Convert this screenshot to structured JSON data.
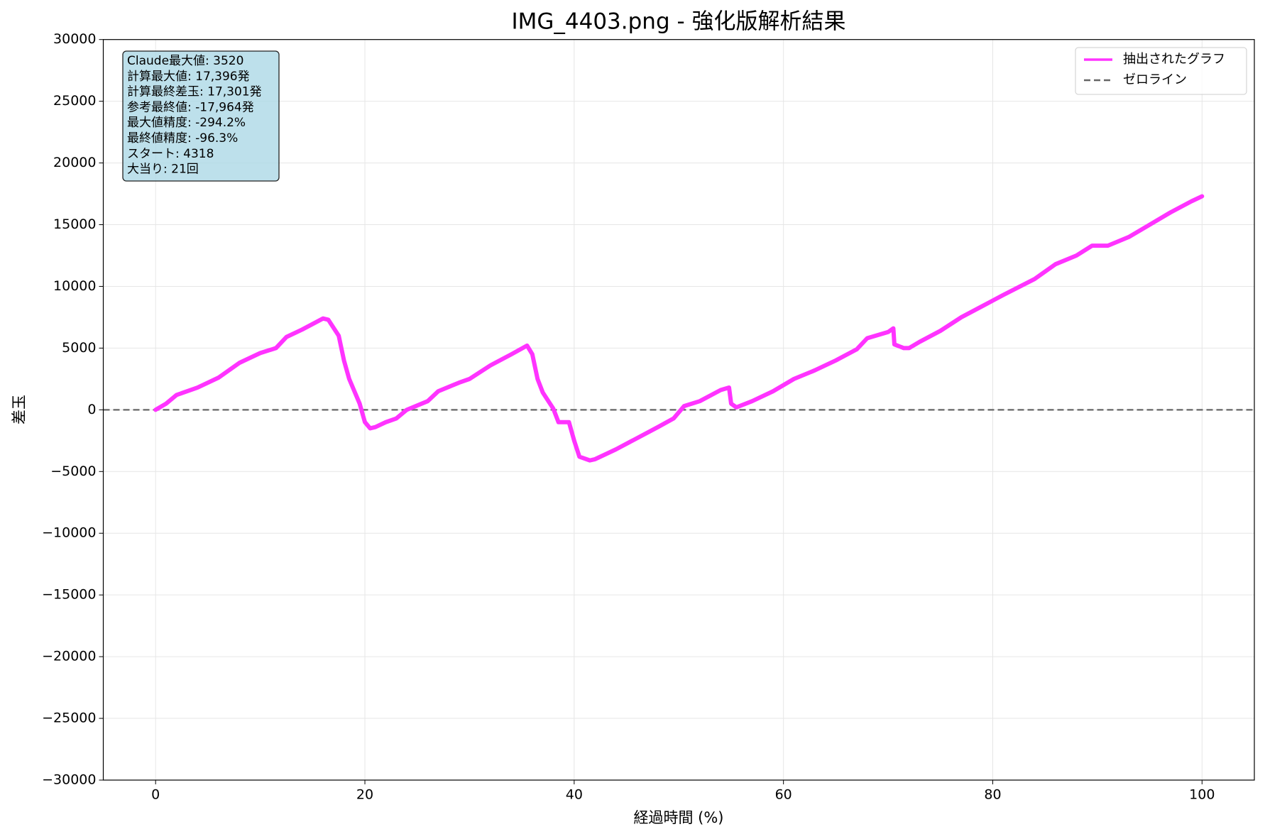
{
  "chart_data": {
    "type": "line",
    "title": "IMG_4403.png - 強化版解析結果",
    "x_label": "経過時間 (%)",
    "y_label": "差玉",
    "xlim": [
      -5,
      105
    ],
    "ylim": [
      -30000,
      30000
    ],
    "xticks": [
      0,
      20,
      40,
      60,
      80,
      100
    ],
    "yticks": [
      {
        "value": -30000,
        "label": "−30000"
      },
      {
        "value": -25000,
        "label": "−25000"
      },
      {
        "value": -20000,
        "label": "−20000"
      },
      {
        "value": -15000,
        "label": "−15000"
      },
      {
        "value": -10000,
        "label": "−10000"
      },
      {
        "value": -5000,
        "label": "−5000"
      },
      0,
      5000,
      10000,
      15000,
      20000,
      25000,
      30000
    ],
    "grid": true,
    "legend": "upper right",
    "x": [
      0,
      1,
      2,
      4,
      6,
      8,
      10,
      11.5,
      12.5,
      14,
      16,
      16.5,
      17.5,
      18,
      18.5,
      19.5,
      20,
      20.5,
      21,
      22,
      23,
      24,
      26,
      27,
      29,
      30,
      32,
      34,
      35.5,
      36,
      36.5,
      37,
      38,
      38.5,
      39.5,
      40,
      40.5,
      41.5,
      42,
      44,
      46,
      48,
      49.5,
      50.5,
      52,
      54,
      54.8,
      55,
      55.5,
      57,
      59,
      61,
      63,
      65,
      67,
      68,
      70,
      70.5,
      70.6,
      71.5,
      72,
      73,
      75,
      77,
      79,
      81,
      84,
      86,
      88,
      89.5,
      91,
      93,
      95,
      97,
      99,
      100
    ],
    "series": [
      {
        "name": "抽出されたグラフ",
        "color": "#ff33ff",
        "values": [
          0,
          500,
          1200,
          1800,
          2600,
          3800,
          4600,
          5000,
          5900,
          6500,
          7400,
          7300,
          6000,
          4000,
          2500,
          500,
          -1000,
          -1500,
          -1400,
          -1000,
          -700,
          0,
          700,
          1500,
          2200,
          2500,
          3600,
          4500,
          5200,
          4500,
          2500,
          1400,
          100,
          -1000,
          -1000,
          -2500,
          -3800,
          -4100,
          -4000,
          -3200,
          -2300,
          -1400,
          -700,
          300,
          700,
          1600,
          1800,
          500,
          200,
          700,
          1500,
          2500,
          3200,
          4000,
          4900,
          5800,
          6300,
          6600,
          5300,
          5000,
          5000,
          5500,
          6400,
          7500,
          8400,
          9300,
          10600,
          11800,
          12500,
          13300,
          13300,
          14000,
          15000,
          16000,
          16900,
          17300
        ]
      }
    ],
    "reference_lines": [
      {
        "name": "ゼロライン",
        "value": 0,
        "color": "#666666",
        "style": "dashed"
      }
    ],
    "annotation_lines": [
      "Claude最大値: 3520",
      "計算最大値: 17,396発",
      "計算最終差玉: 17,301発",
      "参考最終値: -17,964発",
      "最大値精度: -294.2%",
      "最終値精度: -96.3%",
      "スタート: 4318",
      "大当り: 21回"
    ]
  }
}
